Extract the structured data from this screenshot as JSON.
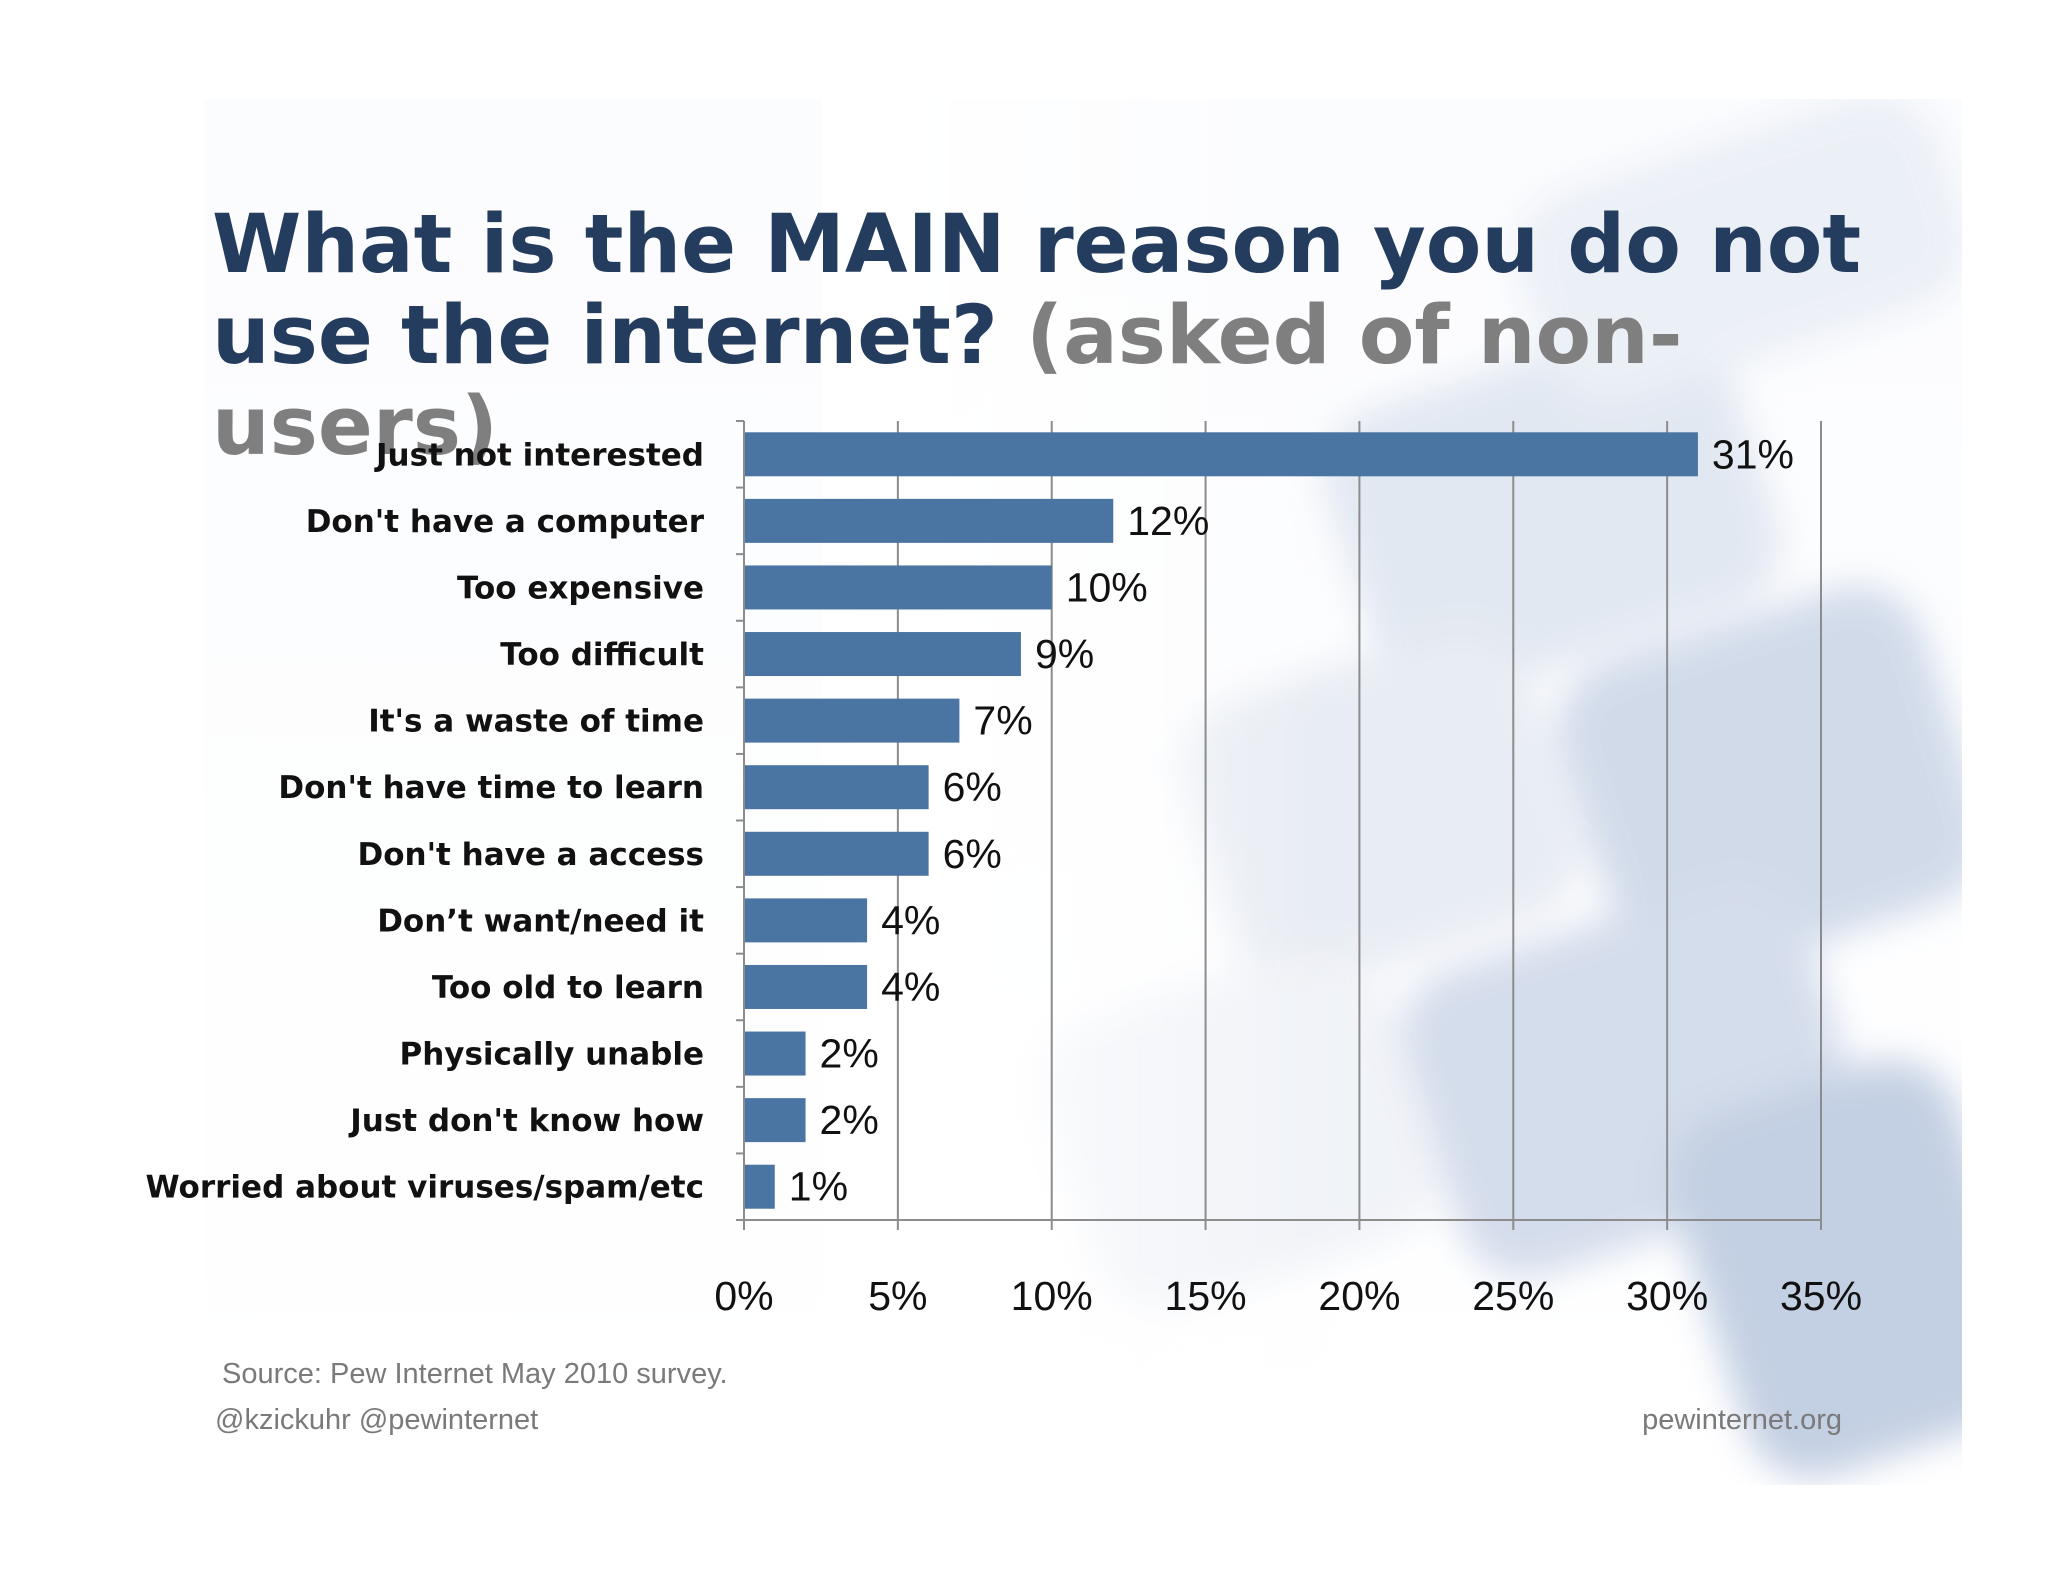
{
  "title": {
    "main": "What is the MAIN reason you do not use the internet?",
    "sub": "(asked of non-users)"
  },
  "colors": {
    "bar": "#4a74a2",
    "title": "#243c5e",
    "title_sub": "#7f7f7f",
    "gridline": "#8c8c8c"
  },
  "chart_data": {
    "type": "bar",
    "orientation": "horizontal",
    "categories": [
      "Just not interested",
      "Don't have a computer",
      "Too expensive",
      "Too difficult",
      "It's a waste of time",
      "Don't have time to learn",
      "Don't have a access",
      "Don’t want/need it",
      "Too old to learn",
      "Physically unable",
      "Just don't know how",
      "Worried about viruses/spam/etc"
    ],
    "values": [
      31,
      12,
      10,
      9,
      7,
      6,
      6,
      4,
      4,
      2,
      2,
      1
    ],
    "data_labels": [
      "31%",
      "12%",
      "10%",
      "9%",
      "7%",
      "6%",
      "6%",
      "4%",
      "4%",
      "2%",
      "2%",
      "1%"
    ],
    "x_ticks": [
      0,
      5,
      10,
      15,
      20,
      25,
      30,
      35
    ],
    "x_tick_labels": [
      "0%",
      "5%",
      "10%",
      "15%",
      "20%",
      "25%",
      "30%",
      "35%"
    ],
    "xlim": [
      0,
      35
    ],
    "grid": true
  },
  "footer": {
    "source": "Source:  Pew Internet May 2010 survey.",
    "handles": "@kzickuhr @pewinternet",
    "site": "pewinternet.org"
  }
}
